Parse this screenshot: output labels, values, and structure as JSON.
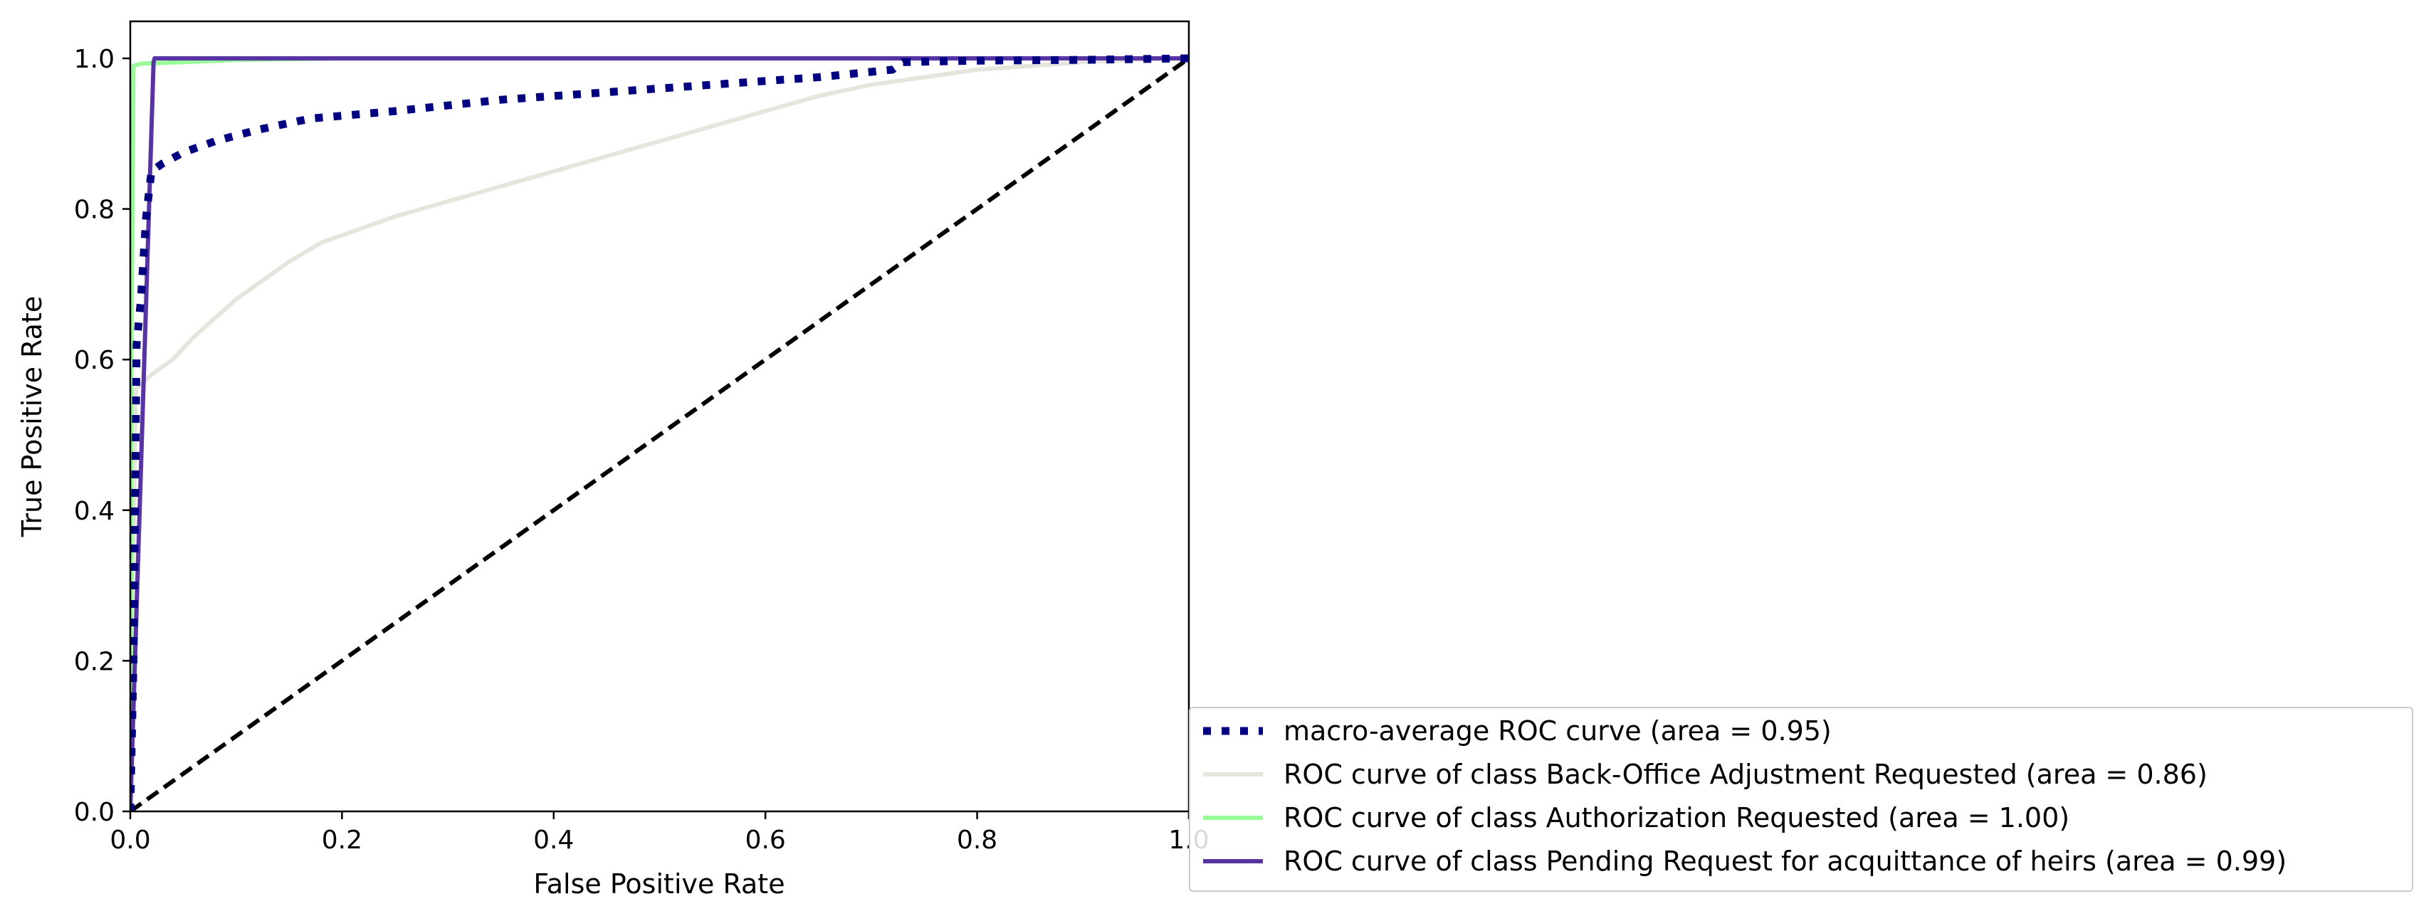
{
  "chart_data": {
    "type": "line",
    "title": "",
    "xlabel": "False Positive Rate",
    "ylabel": "True Positive Rate",
    "xlim": [
      0.0,
      1.0
    ],
    "ylim": [
      0.0,
      1.05
    ],
    "xticks": [
      "0.0",
      "0.2",
      "0.4",
      "0.6",
      "0.8",
      "1.0"
    ],
    "yticks": [
      "0.0",
      "0.2",
      "0.4",
      "0.6",
      "0.8",
      "1.0"
    ],
    "grid": false,
    "legend_position": "lower-right, extending outside the axes",
    "series": [
      {
        "name": "macro-average ROC curve (area = 0.95)",
        "color": "#000080",
        "style": "dotted",
        "x": [
          0.0,
          0.003,
          0.006,
          0.01,
          0.015,
          0.02,
          0.03,
          0.05,
          0.08,
          0.12,
          0.17,
          0.25,
          0.35,
          0.45,
          0.55,
          0.65,
          0.72,
          0.73,
          0.8,
          0.9,
          1.0
        ],
        "y": [
          0.0,
          0.2,
          0.62,
          0.68,
          0.79,
          0.85,
          0.86,
          0.875,
          0.89,
          0.905,
          0.92,
          0.93,
          0.945,
          0.955,
          0.965,
          0.975,
          0.985,
          0.995,
          0.997,
          0.998,
          1.0
        ]
      },
      {
        "name": "ROC curve of class Back-Office Adjustment Requested (area = 0.86)",
        "color": "#e5e5dd",
        "style": "solid",
        "x": [
          0.0,
          0.005,
          0.02,
          0.04,
          0.06,
          0.08,
          0.1,
          0.12,
          0.15,
          0.18,
          0.2,
          0.25,
          0.3,
          0.35,
          0.4,
          0.45,
          0.5,
          0.55,
          0.6,
          0.65,
          0.7,
          0.75,
          0.8,
          0.85,
          0.9,
          0.95,
          1.0
        ],
        "y": [
          0.0,
          0.56,
          0.58,
          0.6,
          0.63,
          0.655,
          0.68,
          0.7,
          0.73,
          0.755,
          0.765,
          0.79,
          0.81,
          0.83,
          0.85,
          0.87,
          0.89,
          0.91,
          0.93,
          0.95,
          0.965,
          0.975,
          0.985,
          0.99,
          0.995,
          0.998,
          1.0
        ]
      },
      {
        "name": "ROC curve of class Authorization Requested (area = 1.00)",
        "color": "#98fb98",
        "style": "solid",
        "x": [
          0.0,
          0.001,
          0.003,
          0.01,
          0.05,
          0.1,
          0.2,
          1.0
        ],
        "y": [
          0.0,
          0.6,
          0.99,
          0.993,
          0.995,
          0.998,
          1.0,
          1.0
        ]
      },
      {
        "name": "ROC curve of class Pending Request for acquittance of heirs (area = 0.99)",
        "color": "#5733a3",
        "style": "solid",
        "x": [
          0.0,
          0.022,
          0.023,
          0.1,
          1.0
        ],
        "y": [
          0.0,
          0.995,
          1.0,
          1.0,
          1.0
        ]
      },
      {
        "name": "",
        "color": "#000000",
        "style": "dashed",
        "x": [
          0.0,
          1.0
        ],
        "y": [
          0.0,
          1.0
        ]
      }
    ]
  }
}
